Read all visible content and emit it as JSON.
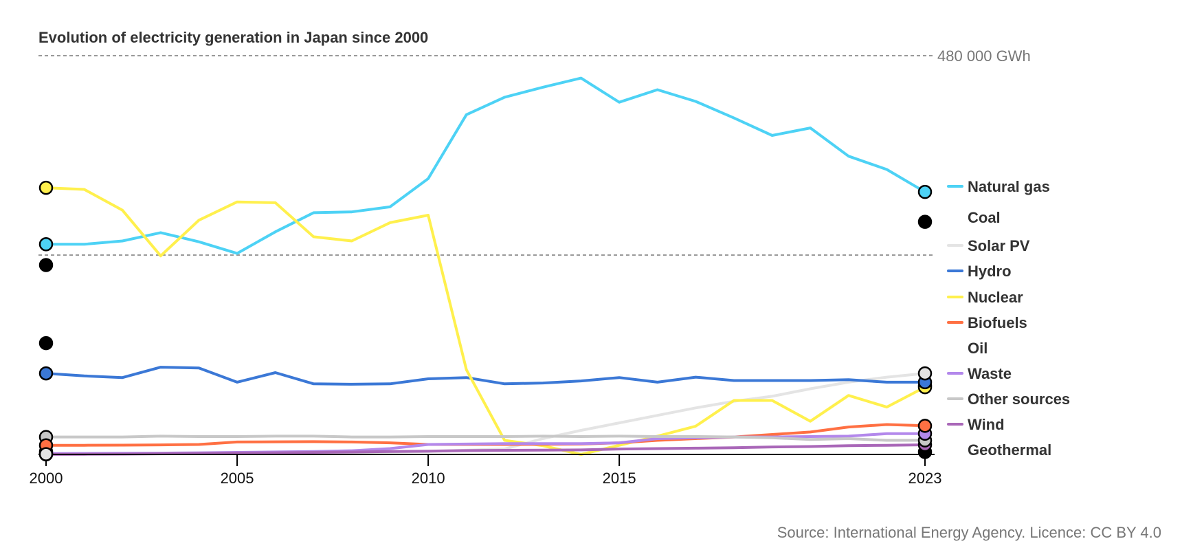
{
  "chart_data": {
    "type": "line",
    "title": "Evolution of electricity generation in Japan since 2000",
    "source": "Source: International Energy Agency. Licence: CC BY 4.0",
    "xlabel": "",
    "ylabel": "",
    "unit": "GWh",
    "ylim": [
      0,
      480000
    ],
    "reference_lines": [
      {
        "value": 480000,
        "label": "480 000 GWh"
      },
      {
        "value": 240000,
        "label": ""
      }
    ],
    "x": [
      2000,
      2001,
      2002,
      2003,
      2004,
      2005,
      2006,
      2007,
      2008,
      2009,
      2010,
      2011,
      2012,
      2013,
      2014,
      2015,
      2016,
      2017,
      2018,
      2019,
      2020,
      2021,
      2022,
      2023
    ],
    "x_ticks": [
      2000,
      2005,
      2010,
      2015,
      2023
    ],
    "legend_position": "right",
    "series": [
      {
        "name": "Natural gas",
        "color": "#4dd2f5",
        "show_line": true,
        "values": [
          253000,
          253000,
          257000,
          267000,
          256000,
          242000,
          268000,
          291000,
          292000,
          298000,
          332000,
          409000,
          430000,
          442000,
          453000,
          424000,
          439000,
          425000,
          405000,
          384000,
          393000,
          359000,
          343000,
          316000
        ]
      },
      {
        "name": "Coal",
        "color": "#ffffff",
        "show_line": false,
        "values": [
          228000,
          null,
          null,
          null,
          null,
          null,
          null,
          null,
          null,
          null,
          null,
          null,
          null,
          null,
          null,
          null,
          null,
          null,
          null,
          null,
          null,
          null,
          null,
          280000
        ]
      },
      {
        "name": "Solar PV",
        "color": "#e4e4e4",
        "show_line": true,
        "values": [
          300,
          300,
          400,
          500,
          1000,
          1300,
          1500,
          1800,
          2200,
          2800,
          3500,
          5200,
          6600,
          19000,
          29000,
          38000,
          47000,
          56000,
          64000,
          70000,
          79000,
          87000,
          93000,
          97600
        ]
      },
      {
        "name": "Hydro",
        "color": "#3b78d6",
        "show_line": true,
        "values": [
          97600,
          94500,
          92500,
          105000,
          104000,
          87000,
          98500,
          85000,
          84500,
          85000,
          91000,
          92500,
          85000,
          86000,
          88500,
          92500,
          87000,
          93000,
          89000,
          89000,
          89000,
          90000,
          87000,
          87000
        ]
      },
      {
        "name": "Nuclear",
        "color": "#fff04d",
        "show_line": true,
        "values": [
          321000,
          319000,
          294000,
          239000,
          282000,
          304000,
          303000,
          262000,
          257000,
          279000,
          288000,
          102000,
          17000,
          10500,
          0,
          11000,
          22000,
          34000,
          65000,
          65000,
          40000,
          71000,
          57000,
          81000
        ]
      },
      {
        "name": "Biofuels",
        "color": "#ff7043",
        "show_line": true,
        "values": [
          11000,
          11000,
          11200,
          11500,
          12000,
          15000,
          15200,
          15400,
          15000,
          14000,
          12000,
          12000,
          12000,
          12200,
          12500,
          14000,
          17000,
          19000,
          21000,
          24000,
          27000,
          33000,
          36000,
          34500
        ]
      },
      {
        "name": "Oil",
        "color": "#ffffff",
        "show_line": false,
        "values": [
          134000,
          null,
          null,
          null,
          null,
          null,
          null,
          null,
          null,
          null,
          null,
          null,
          null,
          null,
          null,
          null,
          null,
          null,
          null,
          null,
          null,
          null,
          null,
          83000
        ]
      },
      {
        "name": "Waste",
        "color": "#b388eb",
        "show_line": true,
        "values": [
          1000,
          1200,
          1400,
          1600,
          2000,
          2500,
          3000,
          3500,
          4500,
          7000,
          12000,
          12500,
          13000,
          13000,
          13000,
          14000,
          19000,
          20000,
          21000,
          21000,
          21500,
          22000,
          25000,
          25000
        ]
      },
      {
        "name": "Other sources",
        "color": "#c8c8c8",
        "show_line": true,
        "values": [
          21000,
          21000,
          21000,
          22000,
          21500,
          21500,
          22000,
          22000,
          21000,
          21000,
          21500,
          21500,
          21500,
          22000,
          21500,
          22000,
          21500,
          21500,
          21000,
          20000,
          18000,
          19000,
          17000,
          17000
        ]
      },
      {
        "name": "Wind",
        "color": "#a967b8",
        "show_line": true,
        "values": [
          100,
          250,
          400,
          800,
          1200,
          1700,
          2000,
          2500,
          2900,
          3500,
          4000,
          4600,
          5000,
          5200,
          5500,
          6500,
          7000,
          7500,
          8000,
          9000,
          9500,
          10500,
          11000,
          11600
        ]
      },
      {
        "name": "Geothermal",
        "color": "#ffffff",
        "show_line": false,
        "values": [
          3300,
          null,
          null,
          null,
          null,
          null,
          null,
          null,
          null,
          null,
          null,
          null,
          null,
          null,
          null,
          null,
          null,
          null,
          null,
          null,
          null,
          null,
          null,
          3000
        ]
      }
    ]
  }
}
